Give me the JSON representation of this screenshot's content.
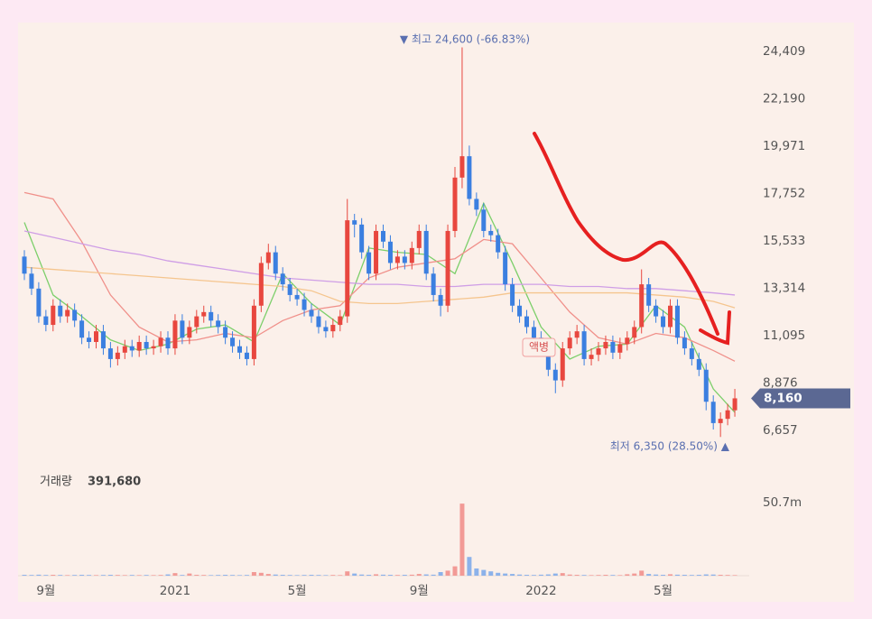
{
  "chart_data": {
    "type": "candlestick",
    "categories": [
      null,
      null,
      null,
      "9월",
      null,
      null,
      null,
      null,
      null,
      null,
      null,
      null,
      null,
      null,
      null,
      null,
      null,
      null,
      null,
      null,
      null,
      "2021",
      null,
      null,
      null,
      null,
      null,
      null,
      null,
      null,
      null,
      null,
      null,
      null,
      null,
      null,
      null,
      null,
      "5월",
      null,
      null,
      null,
      null,
      null,
      null,
      null,
      null,
      null,
      null,
      null,
      null,
      null,
      null,
      null,
      null,
      "9월",
      null,
      null,
      null,
      null,
      null,
      null,
      null,
      null,
      null,
      null,
      null,
      null,
      null,
      null,
      null,
      null,
      "2022",
      null,
      null,
      null,
      null,
      null,
      null,
      null,
      null,
      null,
      null,
      null,
      null,
      null,
      null,
      null,
      null,
      "5월",
      null,
      null,
      null,
      null,
      null,
      null,
      null,
      null,
      null,
      null
    ],
    "open": [
      14800,
      14000,
      13300,
      12000,
      11600,
      12500,
      12000,
      12300,
      11800,
      11000,
      10800,
      11300,
      10500,
      10000,
      10300,
      10600,
      10400,
      10800,
      10500,
      10600,
      11000,
      10500,
      11800,
      11000,
      11500,
      12000,
      12200,
      11800,
      11500,
      11000,
      10600,
      10300,
      10000,
      12500,
      14500,
      15000,
      14000,
      13500,
      13000,
      12800,
      12300,
      12000,
      11500,
      11300,
      11600,
      12000,
      16500,
      16300,
      15000,
      14000,
      16000,
      15500,
      14500,
      14800,
      14500,
      15200,
      16000,
      14000,
      13000,
      12500,
      16000,
      18500,
      19500,
      17500,
      17000,
      16000,
      15800,
      15000,
      13500,
      12500,
      12000,
      11500,
      11000,
      10500,
      9500,
      9000,
      10500,
      11000,
      11300,
      10000,
      10200,
      10500,
      10800,
      10300,
      10700,
      11000,
      11500,
      13500,
      12500,
      12000,
      11500,
      12500,
      11000,
      10500,
      10000,
      9500,
      8000,
      7000,
      7200,
      7600
    ],
    "high": [
      15100,
      14300,
      13600,
      12300,
      12800,
      12800,
      12600,
      12600,
      12100,
      11300,
      11600,
      11600,
      10800,
      10600,
      10900,
      10900,
      11100,
      11100,
      10900,
      11300,
      11300,
      12100,
      12100,
      11800,
      12300,
      12500,
      12500,
      12100,
      11800,
      11300,
      10900,
      10600,
      12800,
      14800,
      15400,
      15300,
      14300,
      13800,
      13300,
      13100,
      12600,
      12300,
      11800,
      11900,
      12300,
      17500,
      16800,
      16600,
      15300,
      16300,
      16300,
      15800,
      15100,
      15100,
      15500,
      16300,
      16300,
      14300,
      13300,
      16300,
      19000,
      24600,
      20000,
      17800,
      17300,
      16300,
      16100,
      15300,
      13800,
      12800,
      12300,
      11800,
      11300,
      10800,
      9800,
      10800,
      11300,
      11600,
      11600,
      10500,
      10800,
      11100,
      11100,
      11000,
      11300,
      11800,
      14200,
      13800,
      12800,
      12300,
      12800,
      12800,
      11300,
      10800,
      10300,
      9800,
      8300,
      7500,
      7900,
      8600
    ],
    "low": [
      13700,
      13000,
      11700,
      11300,
      11300,
      11700,
      11700,
      11500,
      10700,
      10500,
      10500,
      10200,
      9600,
      9700,
      10000,
      10100,
      10100,
      10200,
      10200,
      10300,
      10200,
      10200,
      10700,
      10700,
      11200,
      11700,
      11500,
      11200,
      10700,
      10300,
      10000,
      9700,
      9700,
      12200,
      14200,
      13700,
      13200,
      12700,
      12500,
      12000,
      11700,
      11200,
      11000,
      11000,
      11300,
      11700,
      15700,
      14700,
      13700,
      13700,
      15200,
      14200,
      14200,
      14200,
      14200,
      14900,
      13700,
      12700,
      12000,
      12200,
      15700,
      18000,
      17200,
      16700,
      15700,
      15500,
      14700,
      13200,
      12200,
      11700,
      11200,
      10700,
      10200,
      9200,
      8400,
      8700,
      10200,
      10700,
      9700,
      9700,
      9900,
      10200,
      10000,
      10000,
      10400,
      10700,
      11200,
      12200,
      11700,
      11200,
      11200,
      10700,
      10200,
      9700,
      9200,
      7600,
      6700,
      6350,
      6900,
      7300
    ],
    "close": [
      14000,
      13300,
      12000,
      11600,
      12500,
      12000,
      12300,
      11800,
      11000,
      10800,
      11300,
      10500,
      10000,
      10300,
      10600,
      10400,
      10800,
      10500,
      10600,
      11000,
      10500,
      11800,
      11000,
      11500,
      12000,
      12200,
      11800,
      11500,
      11000,
      10600,
      10300,
      10000,
      12500,
      14500,
      15000,
      14000,
      13500,
      13000,
      12800,
      12300,
      12000,
      11500,
      11300,
      11600,
      12000,
      16500,
      16300,
      15000,
      14000,
      16000,
      15500,
      14500,
      14800,
      14500,
      15200,
      16000,
      14000,
      13000,
      12500,
      16000,
      18500,
      19500,
      17500,
      17000,
      16000,
      15800,
      15000,
      13500,
      12500,
      12000,
      11500,
      11000,
      10500,
      9500,
      9000,
      10500,
      11000,
      11300,
      10000,
      10200,
      10500,
      10800,
      10300,
      10700,
      11000,
      11500,
      13500,
      12500,
      12000,
      11500,
      12500,
      11000,
      10500,
      10000,
      9500,
      8000,
      7000,
      7200,
      7600,
      8160
    ],
    "up_color": "#e8473f",
    "down_color": "#3b7fe0",
    "ylim": [
      5474,
      25550
    ],
    "yticks": [
      {
        "value": 6657,
        "label": "6,657"
      },
      {
        "value": 8876,
        "label": "8,876"
      },
      {
        "value": 11095,
        "label": "11,095"
      },
      {
        "value": 13314,
        "label": "13,314"
      },
      {
        "value": 15533,
        "label": "15,533"
      },
      {
        "value": 17752,
        "label": "17,752"
      },
      {
        "value": 19971,
        "label": "19,971"
      },
      {
        "value": 22190,
        "label": "22,190"
      },
      {
        "value": 24409,
        "label": "24,409"
      }
    ],
    "high_annotation": "▼ 최고 24,600 (-66.83%)",
    "low_annotation": "최저 6,350 (28.50%) ▲",
    "marker_annotation": "액병",
    "current_price": {
      "value": 8160,
      "label": "8,160"
    },
    "moving_averages": [
      {
        "color": "#7ccf6a",
        "x": [
          0,
          4,
          8,
          12,
          16,
          20,
          24,
          28,
          32,
          36,
          40,
          44,
          48,
          52,
          56,
          60,
          64,
          68,
          72,
          76,
          80,
          84,
          88,
          92,
          96,
          99
        ],
        "values": [
          16400,
          13000,
          12000,
          10900,
          10400,
          10700,
          11400,
          11600,
          10800,
          14000,
          12600,
          11600,
          15200,
          15000,
          14900,
          14000,
          17300,
          14500,
          11500,
          10000,
          10600,
          10700,
          12500,
          11500,
          8600,
          7500
        ]
      },
      {
        "color": "#f0908a",
        "x": [
          0,
          4,
          8,
          12,
          16,
          20,
          24,
          28,
          32,
          36,
          40,
          44,
          48,
          52,
          56,
          60,
          64,
          68,
          72,
          76,
          80,
          84,
          88,
          92,
          96,
          99
        ],
        "values": [
          17800,
          17500,
          15500,
          13000,
          11500,
          10800,
          10900,
          11200,
          11000,
          11800,
          12300,
          12500,
          13800,
          14300,
          14500,
          14700,
          15600,
          15400,
          13800,
          12200,
          11000,
          10700,
          11200,
          11000,
          10400,
          9900
        ]
      },
      {
        "color": "#f5c58e",
        "x": [
          0,
          4,
          8,
          12,
          16,
          20,
          24,
          28,
          32,
          36,
          40,
          44,
          48,
          52,
          56,
          60,
          64,
          68,
          72,
          76,
          80,
          84,
          88,
          92,
          96,
          99
        ],
        "values": [
          14300,
          14200,
          14100,
          14000,
          13900,
          13800,
          13700,
          13600,
          13500,
          13400,
          13200,
          12700,
          12600,
          12600,
          12700,
          12800,
          12900,
          13100,
          13100,
          13100,
          13100,
          13100,
          13000,
          12900,
          12700,
          12400
        ]
      },
      {
        "color": "#cf9ee6",
        "x": [
          0,
          4,
          8,
          12,
          16,
          20,
          24,
          28,
          32,
          36,
          40,
          44,
          48,
          52,
          56,
          60,
          64,
          68,
          72,
          76,
          80,
          84,
          88,
          92,
          96,
          99
        ],
        "values": [
          16000,
          15700,
          15400,
          15100,
          14900,
          14600,
          14400,
          14200,
          14000,
          13800,
          13700,
          13600,
          13500,
          13500,
          13400,
          13400,
          13500,
          13500,
          13500,
          13400,
          13400,
          13300,
          13300,
          13200,
          13100,
          13000
        ]
      }
    ],
    "volume": {
      "title": "거래량",
      "current": {
        "value": 391680,
        "label": "391,680"
      },
      "values": [
        600000,
        500000,
        700000,
        500000,
        600000,
        500000,
        400000,
        500000,
        600000,
        500000,
        400000,
        500000,
        600000,
        500000,
        400000,
        500000,
        400000,
        500000,
        400000,
        500000,
        900000,
        1800000,
        500000,
        1500000,
        600000,
        500000,
        400000,
        500000,
        600000,
        500000,
        400000,
        500000,
        2500000,
        2000000,
        1200000,
        800000,
        600000,
        500000,
        400000,
        500000,
        600000,
        500000,
        400000,
        500000,
        400000,
        3000000,
        1500000,
        800000,
        600000,
        1000000,
        700000,
        600000,
        500000,
        600000,
        700000,
        1200000,
        900000,
        700000,
        2500000,
        3500000,
        6500000,
        50000000,
        13000000,
        5000000,
        4000000,
        3000000,
        2000000,
        1500000,
        1200000,
        800000,
        600000,
        500000,
        700000,
        900000,
        1500000,
        1800000,
        800000,
        600000,
        500000,
        400000,
        500000,
        600000,
        500000,
        400000,
        1000000,
        1500000,
        3500000,
        1200000,
        800000,
        600000,
        1000000,
        700000,
        600000,
        500000,
        600000,
        900000,
        800000,
        600000,
        500000,
        391680
      ],
      "ylim": [
        0,
        61340000
      ],
      "yticks": [
        {
          "value": 50700000,
          "label": "50.7m"
        }
      ]
    }
  }
}
